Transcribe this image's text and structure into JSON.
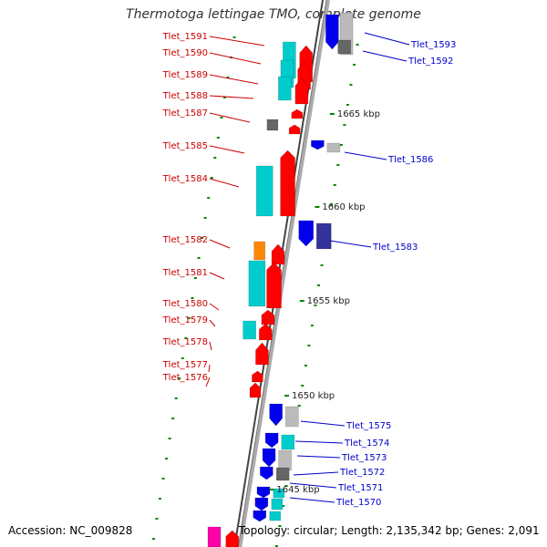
{
  "title": "Thermotoga lettingae TMO, complete genome",
  "footer": {
    "accession": "Accession: NC_009828",
    "summary": "Topology: circular; Length: 2,135,342 bp; Genes: 2,091"
  },
  "colors": {
    "left_label": "#cc0000",
    "right_label": "#0000cc",
    "red": "#ff0000",
    "blue": "#0000ee",
    "cyan": "#00cccc",
    "gray": "#bbbbbb",
    "dark_gray": "#666666",
    "orange": "#ff8800",
    "magenta": "#ff00aa",
    "navy": "#333399",
    "tick": "#008800",
    "backbone": "#888888"
  },
  "scale_labels": [
    "1665 kbp",
    "1660 kbp",
    "1655 kbp",
    "1650 kbp",
    "1645 kbp"
  ],
  "left_genes": [
    "Tlet_1591",
    "Tlet_1590",
    "Tlet_1589",
    "Tlet_1588",
    "Tlet_1587",
    "Tlet_1585",
    "Tlet_1584",
    "Tlet_1582",
    "Tlet_1581",
    "Tlet_1580",
    "Tlet_1579",
    "Tlet_1578",
    "Tlet_1577",
    "Tlet_1576"
  ],
  "right_genes": [
    "Tlet_1593",
    "Tlet_1592",
    "Tlet_1586",
    "Tlet_1583",
    "Tlet_1575",
    "Tlet_1574",
    "Tlet_1573",
    "Tlet_1572",
    "Tlet_1571",
    "Tlet_1570"
  ]
}
